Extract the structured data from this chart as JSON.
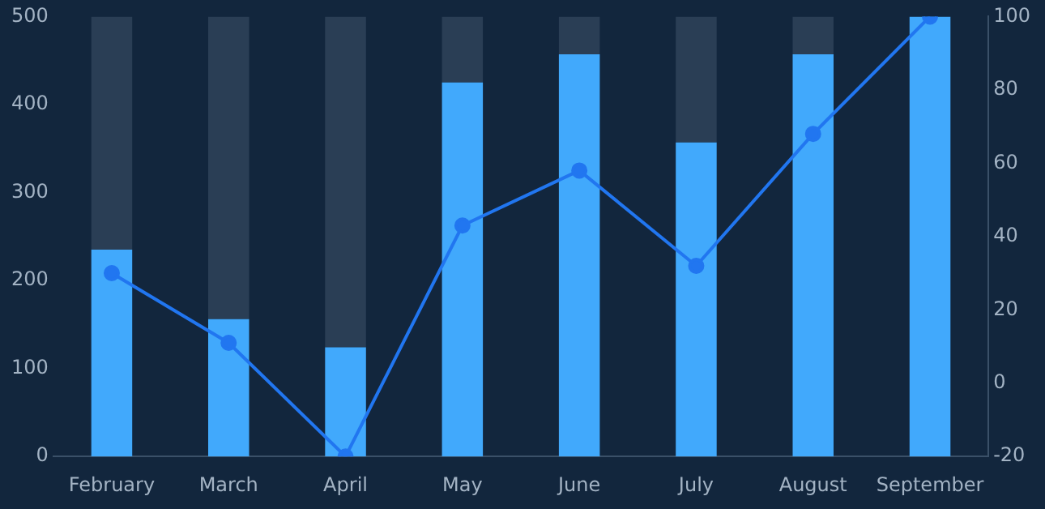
{
  "chart_data": {
    "type": "bar",
    "categories": [
      "February",
      "March",
      "April",
      "May",
      "June",
      "July",
      "August",
      "September"
    ],
    "series": [
      {
        "color": "#41a9fc",
        "values": [
          235,
          156,
          124,
          425,
          457,
          357,
          457,
          500
        ]
      },
      {
        "color": "#2a3e55",
        "values": [
          265,
          344,
          376,
          75,
          43,
          143,
          43,
          0
        ]
      },
      {
        "type": "line",
        "axis": "y2",
        "color": "#2176f0",
        "values": [
          30,
          11,
          -20,
          43,
          58,
          32,
          68,
          100
        ]
      }
    ],
    "ylim": [
      0,
      500
    ],
    "yticks": [
      0,
      100,
      200,
      300,
      400,
      500
    ],
    "y2lim": [
      -20,
      100
    ],
    "y2ticks": [
      -20,
      0,
      20,
      40,
      60,
      80,
      100
    ],
    "stacked": true,
    "grid": false,
    "legend": false,
    "marker": "circle"
  }
}
